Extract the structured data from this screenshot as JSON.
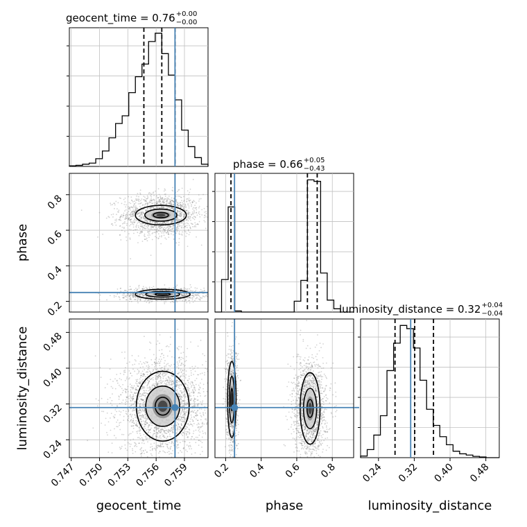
{
  "chart_data": {
    "type": "corner",
    "parameters": [
      "geocent_time",
      "phase",
      "luminosity_distance"
    ],
    "truths": {
      "geocent_time": 0.758,
      "phase": 0.25,
      "luminosity_distance": 0.312
    },
    "colors": {
      "truth": "#4682b4",
      "line": "#000000",
      "grid": "#c0c0c0",
      "scatter": "#7f7f7f"
    },
    "grid": true,
    "titles": [
      {
        "param": "geocent_time",
        "label": "geocent_time = 0.76",
        "sup": "+0.00",
        "sub": "−0.00"
      },
      {
        "param": "phase",
        "label": "phase = 0.66",
        "sup": "+0.05",
        "sub": "−0.43"
      },
      {
        "param": "luminosity_distance",
        "label": "luminosity_distance = 0.32",
        "sup": "+0.04",
        "sub": "−0.04"
      }
    ],
    "axes": {
      "geocent_time": {
        "range": [
          0.7468,
          0.7615
        ],
        "ticks": [
          0.747,
          0.75,
          0.753,
          0.756,
          0.759
        ],
        "tick_labels": [
          "0.747",
          "0.750",
          "0.753",
          "0.756",
          "0.759"
        ]
      },
      "phase": {
        "range": [
          0.14,
          0.92
        ],
        "ticks": [
          0.2,
          0.4,
          0.6,
          0.8
        ],
        "tick_labels": [
          "0.2",
          "0.4",
          "0.6",
          "0.8"
        ]
      },
      "luminosity_distance": {
        "range": [
          0.2,
          0.51
        ],
        "ticks": [
          0.24,
          0.32,
          0.4,
          0.48
        ],
        "tick_labels": [
          "0.24",
          "0.32",
          "0.40",
          "0.48"
        ]
      }
    },
    "histograms": [
      {
        "param": "geocent_time",
        "bin_edges": [
          0.7468,
          0.7475,
          0.7482,
          0.7489,
          0.7496,
          0.7503,
          0.751,
          0.7517,
          0.7524,
          0.7531,
          0.7538,
          0.7545,
          0.7552,
          0.7559,
          0.7566,
          0.7573,
          0.758,
          0.7587,
          0.7594,
          0.7601,
          0.7608,
          0.7615
        ],
        "counts": [
          1,
          2,
          4,
          6,
          14,
          28,
          52,
          78,
          92,
          134,
          163,
          186,
          227,
          242,
          205,
          166,
          121,
          66,
          36,
          16,
          4
        ],
        "quantiles": [
          0.7547,
          0.7566,
          0.758
        ],
        "ymax": 252
      },
      {
        "param": "phase",
        "bin_edges": [
          0.14,
          0.1771,
          0.2143,
          0.2514,
          0.2886,
          0.3257,
          0.3629,
          0.4,
          0.4371,
          0.4743,
          0.5114,
          0.5486,
          0.5857,
          0.6229,
          0.66,
          0.6971,
          0.7343,
          0.7714,
          0.8086,
          0.8457,
          0.8829,
          0.92
        ],
        "counts": [
          0,
          150,
          485,
          5,
          0,
          0,
          0,
          0,
          0,
          0,
          0,
          0,
          50,
          146,
          610,
          603,
          180,
          55,
          15,
          0,
          0
        ],
        "quantiles": [
          0.23,
          0.66,
          0.715
        ],
        "ymax": 640
      },
      {
        "param": "luminosity_distance",
        "bin_edges": [
          0.2,
          0.2148,
          0.2295,
          0.2443,
          0.259,
          0.2738,
          0.2886,
          0.3033,
          0.3181,
          0.3329,
          0.3476,
          0.3624,
          0.3771,
          0.3919,
          0.4067,
          0.4214,
          0.4362,
          0.451,
          0.4657,
          0.4805,
          0.4952,
          0.51
        ],
        "counts": [
          5,
          25,
          70,
          130,
          270,
          355,
          410,
          400,
          340,
          240,
          150,
          100,
          65,
          40,
          20,
          12,
          8,
          4,
          2,
          0,
          0
        ],
        "quantiles": [
          0.277,
          0.321,
          0.363
        ],
        "ymax": 430
      }
    ],
    "joint": [
      {
        "x": "geocent_time",
        "y": "phase",
        "modes": [
          {
            "cx": 0.7565,
            "cy": 0.685,
            "sx": 0.0016,
            "sy": 0.045,
            "n": 1600,
            "levels": [
              [
                0.0008,
                0.015
              ],
              [
                0.0017,
                0.034
              ],
              [
                0.0027,
                0.055
              ]
            ]
          },
          {
            "cx": 0.7567,
            "cy": 0.24,
            "sx": 0.0017,
            "sy": 0.014,
            "n": 1000,
            "levels": [
              [
                0.0008,
                0.007
              ],
              [
                0.0018,
                0.016
              ],
              [
                0.0029,
                0.028
              ]
            ]
          }
        ]
      },
      {
        "x": "geocent_time",
        "y": "luminosity_distance",
        "modes": [
          {
            "cx": 0.7567,
            "cy": 0.315,
            "sx": 0.0017,
            "sy": 0.04,
            "n": 2600,
            "levels": [
              [
                0.0008,
                0.02
              ],
              [
                0.0018,
                0.045
              ],
              [
                0.0028,
                0.078
              ]
            ]
          }
        ]
      },
      {
        "x": "phase",
        "y": "luminosity_distance",
        "modes": [
          {
            "cx": 0.235,
            "cy": 0.33,
            "sx": 0.013,
            "sy": 0.045,
            "n": 900,
            "levels": [
              [
                0.006,
                0.025
              ],
              [
                0.014,
                0.052
              ],
              [
                0.024,
                0.085
              ]
            ]
          },
          {
            "cx": 0.675,
            "cy": 0.31,
            "sx": 0.035,
            "sy": 0.04,
            "n": 1700,
            "levels": [
              [
                0.017,
                0.02
              ],
              [
                0.037,
                0.045
              ],
              [
                0.056,
                0.08
              ]
            ]
          }
        ]
      }
    ]
  }
}
